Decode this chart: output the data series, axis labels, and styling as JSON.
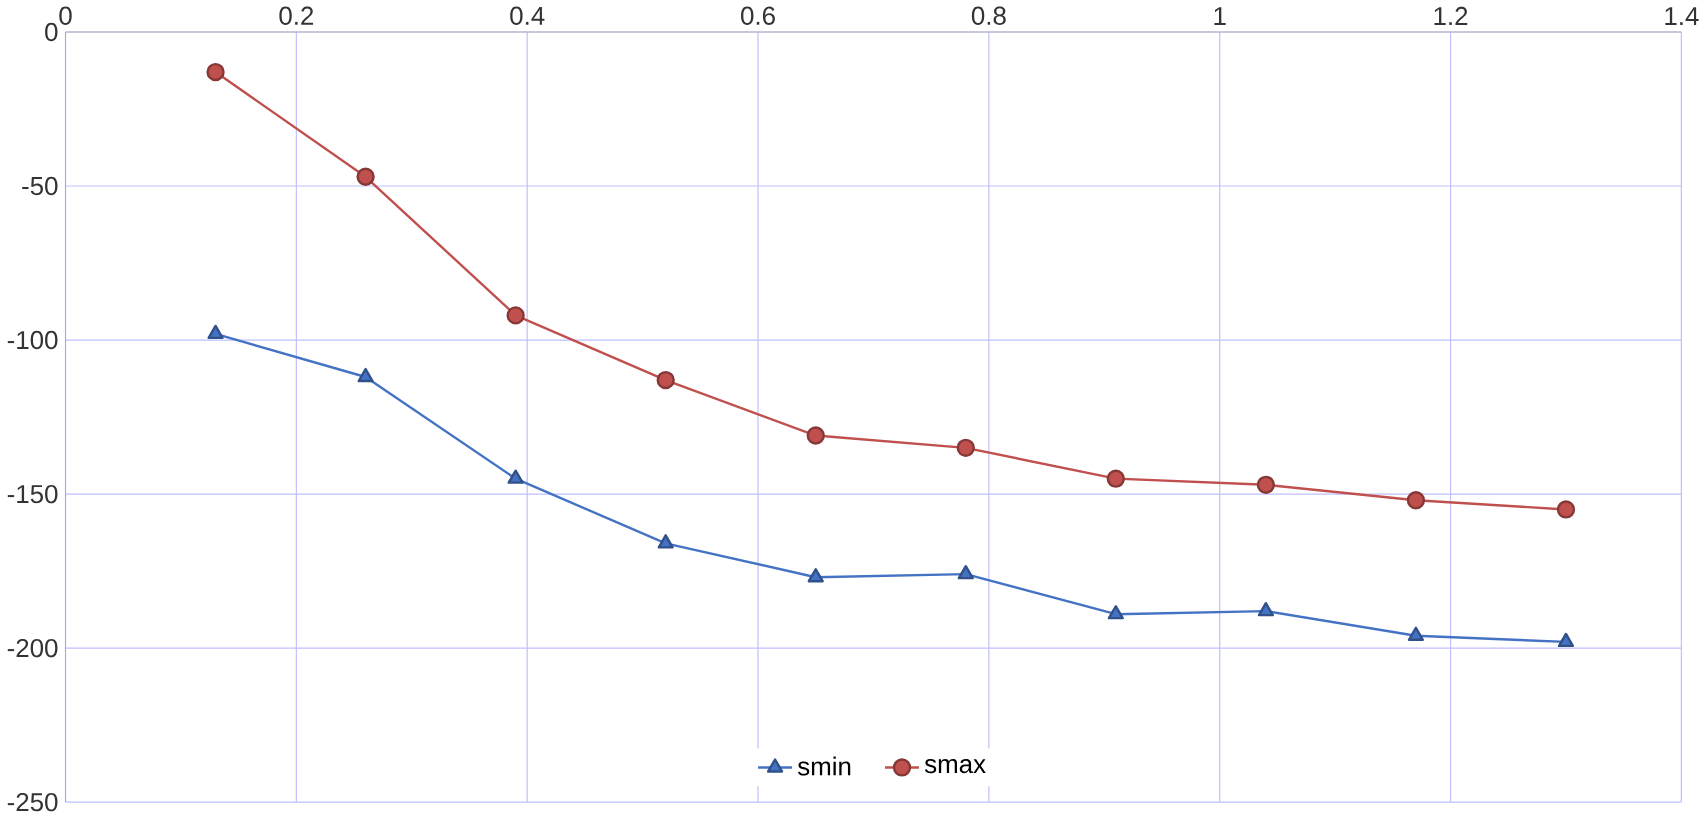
{
  "chart_data": {
    "type": "line",
    "x": [
      0.13,
      0.26,
      0.39,
      0.52,
      0.65,
      0.78,
      0.91,
      1.04,
      1.17,
      1.3
    ],
    "series": [
      {
        "name": "smin",
        "color": "#4472c4",
        "marker": "triangle",
        "values": [
          -98,
          -112,
          -145,
          -166,
          -177,
          -176,
          -189,
          -188,
          -196,
          -198
        ]
      },
      {
        "name": "smax",
        "color": "#c0504d",
        "marker": "circle",
        "values": [
          -13,
          -47,
          -92,
          -113,
          -131,
          -135,
          -145,
          -147,
          -152,
          -155
        ]
      }
    ],
    "xlim": [
      0,
      1.4
    ],
    "xticks": [
      0,
      0.2,
      0.4,
      0.6,
      0.8,
      1,
      1.2,
      1.4
    ],
    "ylim": [
      -250,
      0
    ],
    "yticks": [
      -250,
      -200,
      -150,
      -100,
      -50,
      0
    ],
    "grid": true,
    "legend": "bottom"
  }
}
